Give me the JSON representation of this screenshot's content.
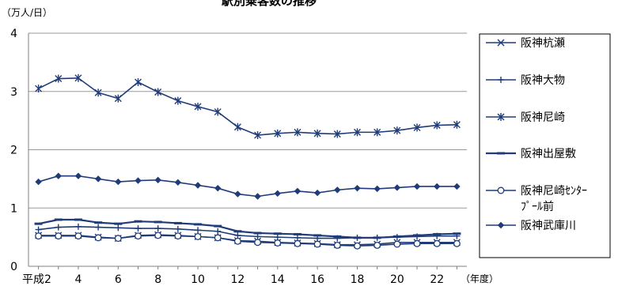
{
  "chart_data": {
    "type": "line",
    "title": "駅別乗客数の推移",
    "ylabel": "（万人/日）",
    "xlabel": "（年度）",
    "ylim": [
      0,
      4
    ],
    "yticks": [
      0,
      1,
      2,
      3,
      4
    ],
    "grid": true,
    "legend_position": "right",
    "x": [
      2,
      3,
      4,
      5,
      6,
      7,
      8,
      9,
      10,
      11,
      12,
      13,
      14,
      15,
      16,
      17,
      18,
      19,
      20,
      21,
      22,
      23
    ],
    "x_tick_labels": [
      {
        "x": 2,
        "label": "平成2"
      },
      {
        "x": 4,
        "label": "4"
      },
      {
        "x": 6,
        "label": "6"
      },
      {
        "x": 8,
        "label": "8"
      },
      {
        "x": 10,
        "label": "10"
      },
      {
        "x": 12,
        "label": "12"
      },
      {
        "x": 14,
        "label": "14"
      },
      {
        "x": 16,
        "label": "16"
      },
      {
        "x": 18,
        "label": "18"
      },
      {
        "x": 20,
        "label": "20"
      },
      {
        "x": 22,
        "label": "22"
      }
    ],
    "series": [
      {
        "name": "阪神杭瀬",
        "marker": "x",
        "values": [
          0.53,
          0.53,
          0.53,
          0.5,
          0.48,
          0.53,
          0.54,
          0.53,
          0.51,
          0.49,
          0.44,
          0.43,
          0.41,
          0.4,
          0.39,
          0.37,
          0.37,
          0.38,
          0.41,
          0.41,
          0.41,
          0.41
        ]
      },
      {
        "name": "阪神大物",
        "marker": "plus",
        "values": [
          0.63,
          0.67,
          0.68,
          0.67,
          0.66,
          0.65,
          0.65,
          0.64,
          0.62,
          0.6,
          0.53,
          0.51,
          0.5,
          0.49,
          0.48,
          0.48,
          0.49,
          0.49,
          0.5,
          0.51,
          0.52,
          0.52
        ]
      },
      {
        "name": "阪神尼崎",
        "marker": "asterisk",
        "values": [
          3.05,
          3.22,
          3.23,
          2.98,
          2.88,
          3.16,
          2.99,
          2.84,
          2.74,
          2.65,
          2.39,
          2.25,
          2.28,
          2.3,
          2.28,
          2.27,
          2.3,
          2.3,
          2.33,
          2.38,
          2.42,
          2.43
        ]
      },
      {
        "name": "阪神出屋敷",
        "marker": "dash",
        "values": [
          0.73,
          0.8,
          0.8,
          0.75,
          0.73,
          0.77,
          0.76,
          0.74,
          0.72,
          0.69,
          0.6,
          0.57,
          0.56,
          0.55,
          0.53,
          0.51,
          0.49,
          0.49,
          0.51,
          0.53,
          0.55,
          0.56
        ]
      },
      {
        "name": "阪神尼崎センタープール前",
        "name_lines": [
          "阪神尼崎ｾﾝﾀｰ",
          "ﾌﾟｰﾙ前"
        ],
        "marker": "circle",
        "values": [
          0.52,
          0.52,
          0.52,
          0.49,
          0.48,
          0.52,
          0.53,
          0.52,
          0.51,
          0.49,
          0.43,
          0.41,
          0.4,
          0.39,
          0.38,
          0.36,
          0.35,
          0.36,
          0.38,
          0.39,
          0.39,
          0.39
        ]
      },
      {
        "name": "阪神武庫川",
        "marker": "diamond",
        "values": [
          1.45,
          1.55,
          1.55,
          1.5,
          1.45,
          1.47,
          1.48,
          1.44,
          1.39,
          1.34,
          1.24,
          1.2,
          1.25,
          1.29,
          1.26,
          1.31,
          1.34,
          1.33,
          1.35,
          1.37,
          1.37,
          1.37
        ]
      }
    ],
    "colors": {
      "series": "#1f3c78",
      "gridline": "#9a9a9a",
      "axis": "#808080",
      "legend_border": "#000000"
    }
  }
}
